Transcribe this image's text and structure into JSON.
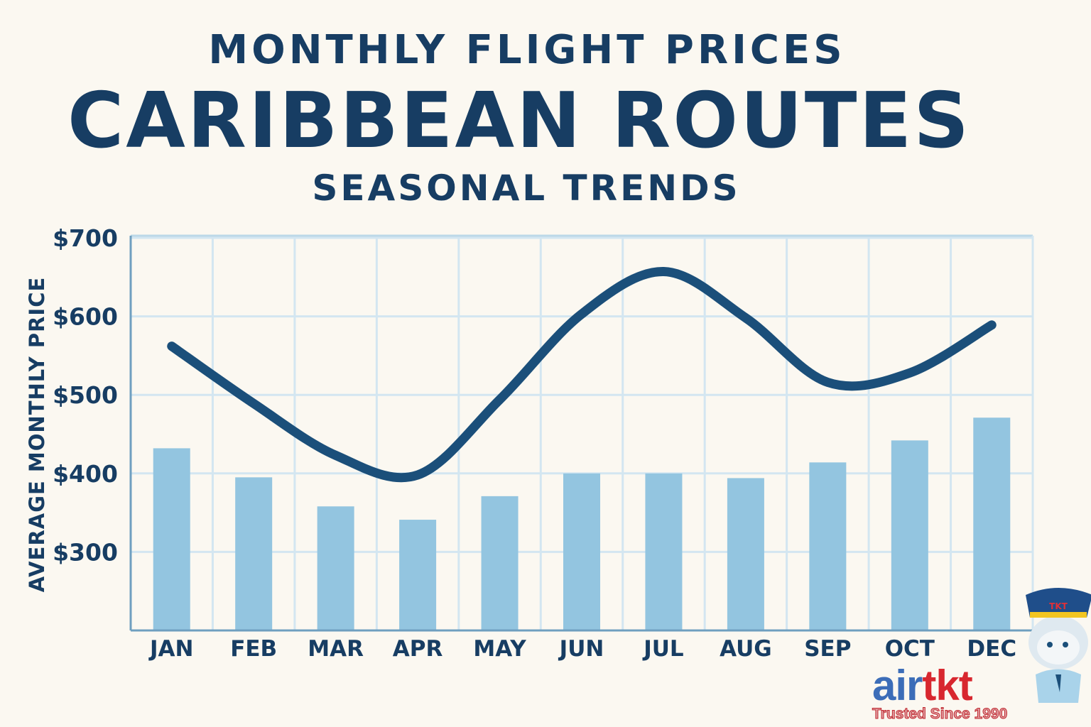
{
  "header": {
    "title_line1": "MONTHLY FLIGHT PRICES",
    "title_line2": "CARIBBEAN ROUTES",
    "subtitle": "SEASONAL TRENDS"
  },
  "chart_data": {
    "type": "bar+line",
    "title": "MONTHLY FLIGHT PRICES CARIBBEAN ROUTES",
    "subtitle": "SEASONAL TRENDS",
    "xlabel": "",
    "ylabel": "AVERAGE MONTHLY PRICE",
    "categories": [
      "JAN",
      "FEB",
      "MAR",
      "APR",
      "MAY",
      "JUN",
      "JUL",
      "AUG",
      "SEP",
      "OCT",
      "DEC"
    ],
    "yticks": [
      "$300",
      "$400",
      "$500",
      "$600",
      "$700"
    ],
    "ytick_values": [
      300,
      400,
      500,
      600,
      700
    ],
    "ylim": [
      200,
      700
    ],
    "grid": true,
    "series": [
      {
        "type": "bar",
        "values": [
          432,
          395,
          358,
          341,
          371,
          400,
          400,
          394,
          414,
          442,
          471
        ],
        "color": "#93c5e0"
      },
      {
        "type": "line",
        "values": [
          562,
          489,
          423,
          398,
          494,
          603,
          657,
          598,
          516,
          528,
          589
        ],
        "color": "#1b4f7a"
      }
    ]
  },
  "branding": {
    "logo_part1": "air",
    "logo_part2": "tkt",
    "tagline": "Trusted Since 1990",
    "mascot_hat_text": "TKT"
  }
}
